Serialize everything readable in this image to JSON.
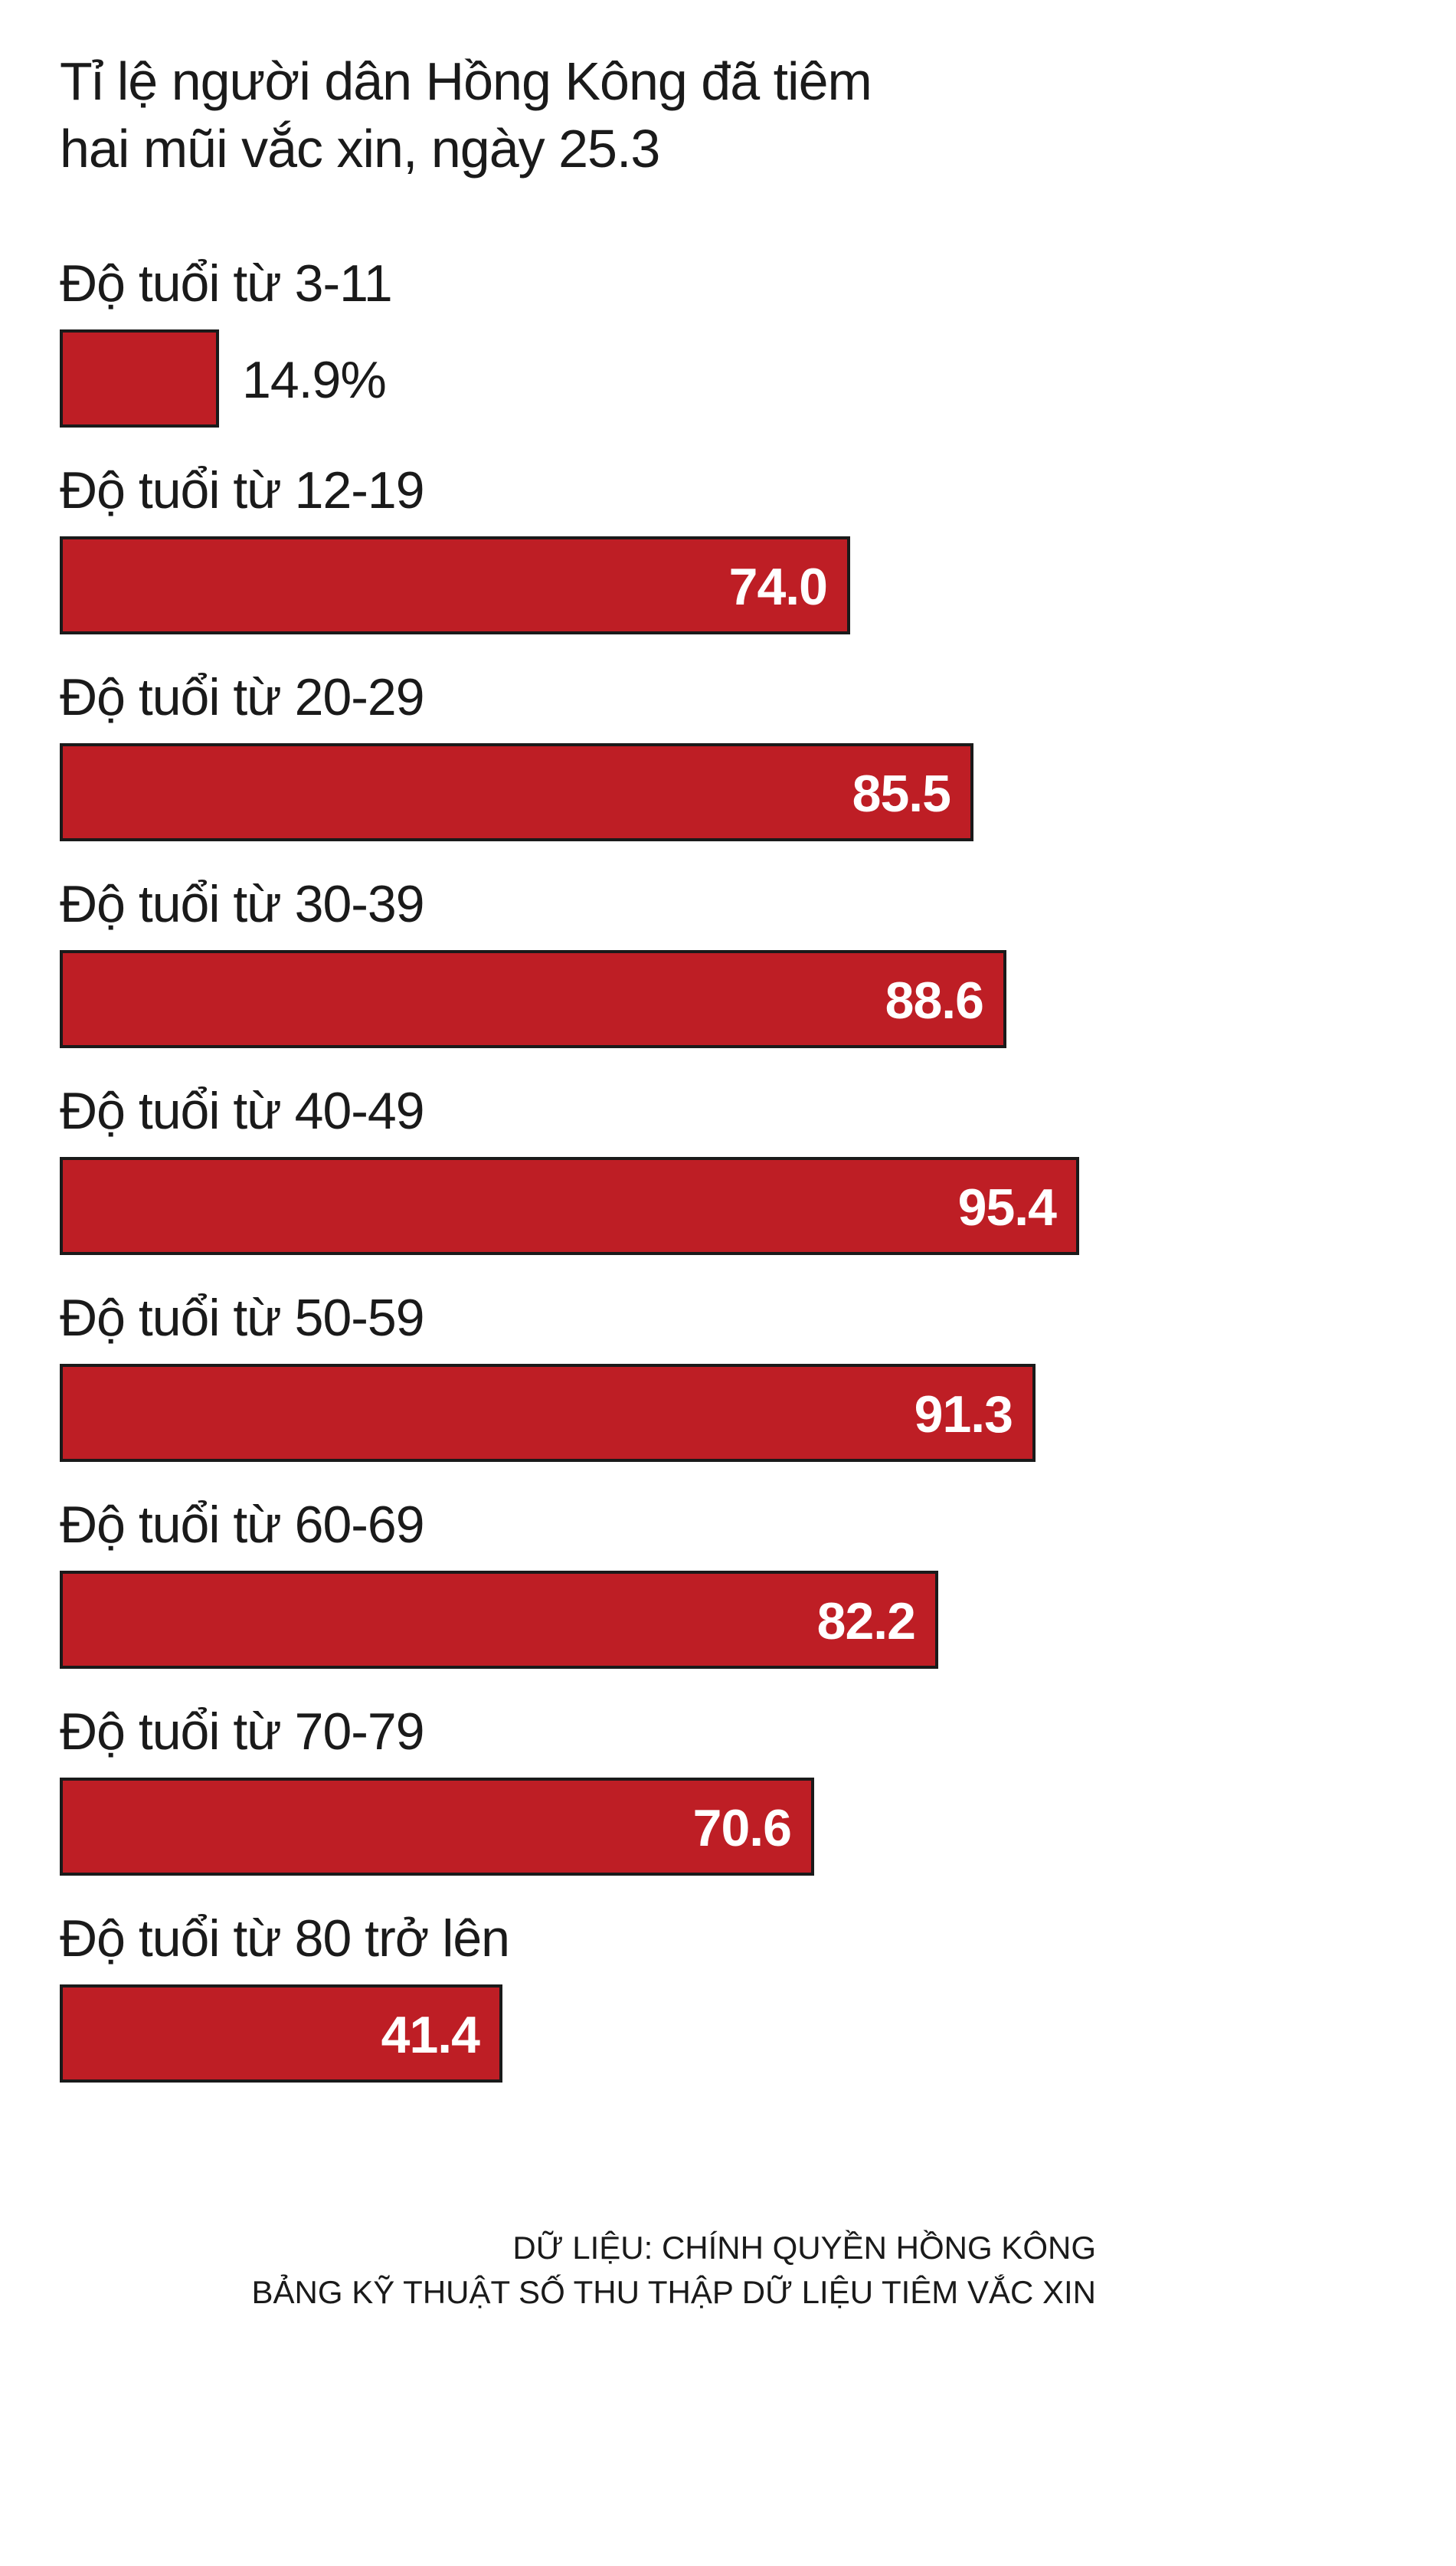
{
  "title_lines": [
    "Tỉ lệ người dân Hồng Kông đã tiêm",
    "hai mũi vắc xin, ngày 25.3"
  ],
  "source_lines": [
    "DỮ LIỆU: CHÍNH QUYỀN HỒNG KÔNG",
    "BẢNG KỸ THUẬT SỐ THU THẬP DỮ LIỆU TIÊM VẮC XIN"
  ],
  "colors": {
    "bar": "#be1e25",
    "bar_border": "#1a1a1a",
    "value_inside": "#ffffff",
    "text": "#1a1a1a"
  },
  "chart_data": {
    "type": "bar",
    "orientation": "horizontal",
    "title": "Tỉ lệ người dân Hồng Kông đã tiêm hai mũi vắc xin, ngày 25.3",
    "categories": [
      "Độ tuổi từ 3-11",
      "Độ tuổi từ 12-19",
      "Độ tuổi từ 20-29",
      "Độ tuổi từ 30-39",
      "Độ tuổi từ 40-49",
      "Độ tuổi từ 50-59",
      "Độ tuổi từ 60-69",
      "Độ tuổi từ 70-79",
      "Độ tuổi từ 80 trở lên"
    ],
    "values": [
      14.9,
      74.0,
      85.5,
      88.6,
      95.4,
      91.3,
      82.2,
      70.6,
      41.4
    ],
    "value_labels": [
      "14.9%",
      "74.0",
      "85.5",
      "88.6",
      "95.4",
      "91.3",
      "82.2",
      "70.6",
      "41.4"
    ],
    "xlim": [
      0,
      100
    ],
    "xlabel": "",
    "ylabel": "",
    "grid": false,
    "legend": "none"
  }
}
